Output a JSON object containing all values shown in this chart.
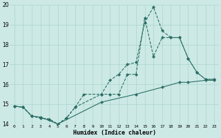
{
  "xlabel": "Humidex (Indice chaleur)",
  "bg_color": "#cce9e5",
  "grid_color": "#aad4cf",
  "line_color": "#2a6e65",
  "xlim": [
    -0.5,
    23.5
  ],
  "ylim": [
    14,
    20
  ],
  "xticks": [
    0,
    1,
    2,
    3,
    4,
    5,
    6,
    7,
    8,
    9,
    10,
    11,
    12,
    13,
    14,
    15,
    16,
    17,
    18,
    19,
    20,
    21,
    22,
    23
  ],
  "yticks": [
    14,
    15,
    16,
    17,
    18,
    19,
    20
  ],
  "line1_x": [
    0,
    1,
    2,
    3,
    4,
    5,
    6,
    7,
    8,
    10,
    11,
    12,
    13,
    14,
    15,
    16,
    17,
    18,
    19,
    20,
    21,
    22,
    23
  ],
  "line1_y": [
    14.9,
    14.85,
    14.4,
    14.3,
    14.25,
    14.0,
    14.3,
    14.85,
    15.5,
    15.5,
    16.2,
    16.5,
    17.0,
    17.1,
    19.1,
    19.9,
    18.7,
    18.35,
    18.35,
    17.3,
    16.6,
    16.25,
    16.25
  ],
  "line2_x": [
    0,
    1,
    2,
    3,
    4,
    5,
    6,
    7,
    10,
    11,
    12,
    13,
    14,
    15,
    16,
    17,
    18,
    19,
    20,
    21,
    22,
    23
  ],
  "line2_y": [
    14.9,
    14.85,
    14.4,
    14.3,
    14.25,
    14.0,
    14.3,
    14.85,
    15.5,
    15.5,
    15.5,
    16.5,
    16.5,
    19.35,
    17.4,
    18.35,
    18.35,
    18.35,
    17.3,
    16.6,
    16.25,
    16.25
  ],
  "line3_x": [
    0,
    1,
    2,
    3,
    5,
    10,
    14,
    17,
    19,
    20,
    22,
    23
  ],
  "line3_y": [
    14.9,
    14.85,
    14.4,
    14.35,
    14.0,
    15.1,
    15.5,
    15.85,
    16.1,
    16.1,
    16.2,
    16.2
  ]
}
